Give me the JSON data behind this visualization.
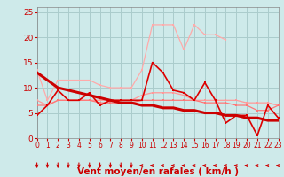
{
  "x": [
    0,
    1,
    2,
    3,
    4,
    5,
    6,
    7,
    8,
    9,
    10,
    11,
    12,
    13,
    14,
    15,
    16,
    17,
    18,
    19,
    20,
    21,
    22,
    23
  ],
  "background_color": "#ceeaea",
  "grid_color": "#aacccc",
  "xlabel": "Vent moyen/en rafales ( km/h )",
  "xlim": [
    0,
    23
  ],
  "ylim": [
    0,
    26
  ],
  "yticks": [
    0,
    5,
    10,
    15,
    20,
    25
  ],
  "series": [
    {
      "name": "lightest_pink",
      "color": "#ffaaaa",
      "linewidth": 0.9,
      "marker": "s",
      "markersize": 2.0,
      "data": [
        13.5,
        7.5,
        11.5,
        11.5,
        11.5,
        11.5,
        10.5,
        10.0,
        10.0,
        10.0,
        13.5,
        22.5,
        22.5,
        22.5,
        17.5,
        22.5,
        20.5,
        20.5,
        19.5,
        null,
        null,
        null,
        7.0,
        6.5
      ]
    },
    {
      "name": "medium_pink",
      "color": "#ff9999",
      "linewidth": 0.9,
      "marker": "s",
      "markersize": 2.0,
      "data": [
        7.5,
        6.5,
        7.5,
        7.5,
        7.5,
        7.5,
        7.5,
        7.5,
        7.5,
        7.5,
        8.5,
        9.0,
        9.0,
        9.0,
        8.5,
        7.5,
        7.5,
        7.5,
        7.5,
        7.5,
        7.0,
        7.0,
        7.0,
        6.5
      ]
    },
    {
      "name": "medium_red",
      "color": "#ff7777",
      "linewidth": 0.9,
      "marker": "s",
      "markersize": 2.0,
      "data": [
        6.5,
        6.5,
        7.5,
        7.5,
        7.5,
        7.5,
        7.0,
        7.0,
        7.0,
        7.0,
        7.5,
        7.5,
        7.5,
        7.5,
        7.5,
        7.5,
        7.0,
        7.0,
        7.0,
        6.5,
        6.5,
        5.5,
        5.5,
        6.5
      ]
    },
    {
      "name": "dark_jagged",
      "color": "#dd0000",
      "linewidth": 1.2,
      "marker": "s",
      "markersize": 2.0,
      "data": [
        4.5,
        6.5,
        9.5,
        7.5,
        7.5,
        9.0,
        6.5,
        7.5,
        7.5,
        7.5,
        7.5,
        15.0,
        13.0,
        9.5,
        9.0,
        7.5,
        11.0,
        7.5,
        3.0,
        4.5,
        4.5,
        0.5,
        6.5,
        4.0
      ]
    },
    {
      "name": "trend_thick",
      "color": "#cc0000",
      "linewidth": 2.2,
      "marker": null,
      "markersize": 0,
      "data": [
        13.0,
        11.5,
        10.0,
        9.5,
        9.0,
        8.5,
        8.0,
        7.5,
        7.0,
        7.0,
        6.5,
        6.5,
        6.0,
        6.0,
        5.5,
        5.5,
        5.0,
        5.0,
        4.5,
        4.5,
        4.0,
        4.0,
        3.5,
        3.5
      ]
    }
  ],
  "arrows_down_indices": [
    0,
    1,
    2,
    3,
    4,
    5,
    6,
    7,
    8,
    9
  ],
  "arrows_left_indices": [
    10,
    11,
    12,
    13,
    14,
    15,
    16,
    17,
    18,
    19,
    20,
    21,
    22,
    23
  ],
  "arrow_color": "#cc0000",
  "tick_color": "#cc0000",
  "tick_fontsize": 5.5,
  "xlabel_fontsize": 7.5,
  "xlabel_color": "#cc0000",
  "ytick_fontsize": 6.5
}
